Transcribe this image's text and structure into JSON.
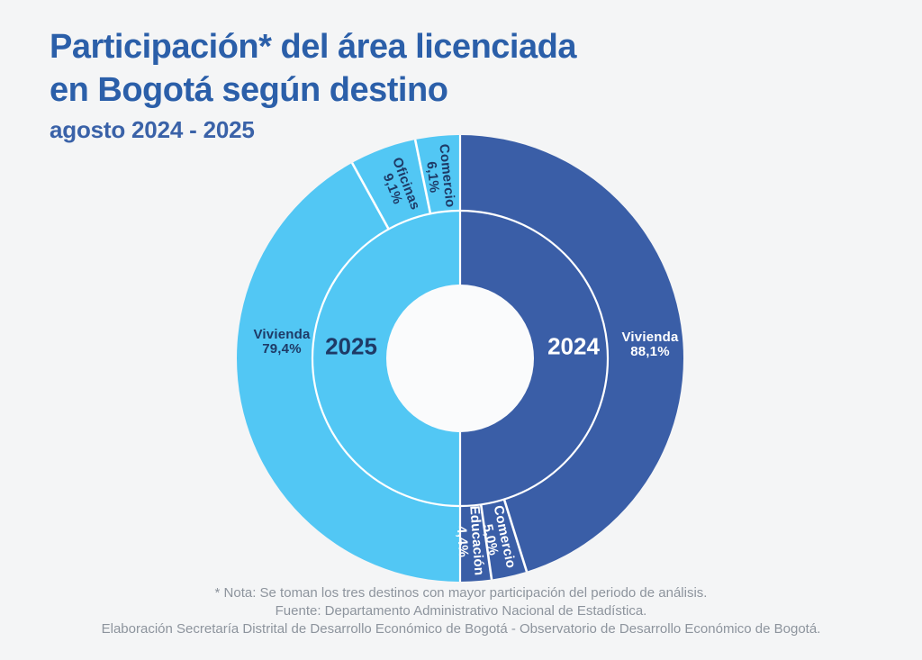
{
  "header": {
    "title_line1": "Participación* del área licenciada",
    "title_line2": "en Bogotá según destino",
    "subtitle": "agosto 2024 - 2025"
  },
  "colors": {
    "background": "#F4F5F6",
    "hole": "#FAFBFC",
    "divider": "#FFFFFF",
    "title_blue": "#2B5FA9",
    "navy_text": "#1E3A66",
    "color_2024": "#3A5EA7",
    "color_2025": "#52C7F4"
  },
  "chart_data": {
    "type": "pie",
    "variant": "double-half-donut",
    "title": "Participación del área licenciada en Bogotá según destino, agosto 2024 - 2025",
    "unit": "percent",
    "layout": "Left half = 2025 (light blue), right half = 2024 (dark blue). Outer ring shows the top-3 destino segments of each year starting at 12 o'clock; inner ring carries the year label. Segments rescaled to fill each half.",
    "legend_position": "none",
    "series": [
      {
        "name": "2024",
        "side": "right",
        "direction": "clockwise",
        "color": "#3A5EA7",
        "segments": [
          {
            "label": "Vivienda",
            "value": 88.1,
            "display": "88,1%"
          },
          {
            "label": "Comercio",
            "value": 5.0,
            "display": "5,0%"
          },
          {
            "label": "Educación",
            "value": 4.4,
            "display": "4,4%"
          }
        ]
      },
      {
        "name": "2025",
        "side": "left",
        "direction": "counterclockwise",
        "color": "#52C7F4",
        "segments": [
          {
            "label": "Comercio",
            "value": 6.1,
            "display": "6,1%"
          },
          {
            "label": "Oficinas",
            "value": 9.1,
            "display": "9,1%"
          },
          {
            "label": "Vivienda",
            "value": 79.4,
            "display": "79,4%"
          }
        ]
      }
    ]
  },
  "footer": {
    "note": "* Nota: Se toman los tres destinos con mayor participación del periodo de análisis.",
    "source": "Fuente: Departamento Administrativo Nacional de Estadística.",
    "elaboration": "Elaboración Secretaría Distrital de Desarrollo Económico de Bogotá - Observatorio de Desarrollo Económico de Bogotá."
  }
}
